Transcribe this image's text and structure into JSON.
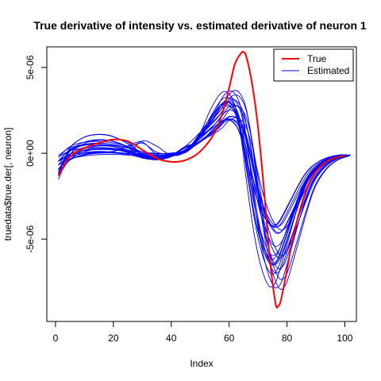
{
  "chart_data": {
    "type": "line",
    "title": "True derivative of intensity vs. estimated derivative of neuron 1",
    "xlabel": "Index",
    "ylabel": "truedata$true.der[, neuron]",
    "xlim": [
      -3,
      104
    ],
    "ylim": [
      -9.8e-06,
      6.2e-06
    ],
    "x_ticks": [
      0,
      20,
      40,
      60,
      80,
      100
    ],
    "x_tick_labels": [
      "0",
      "20",
      "40",
      "60",
      "80",
      "100"
    ],
    "y_ticks": [
      -5e-06,
      0,
      5e-06
    ],
    "y_tick_labels": [
      "-5e-06",
      "0e+00",
      "5e-06"
    ],
    "grid": false,
    "legend": {
      "position": "top-right",
      "entries": [
        {
          "label": "True",
          "color": "#ff0000"
        },
        {
          "label": "Estimated",
          "color": "#0000ff"
        }
      ]
    },
    "colors": {
      "true": "#ff0000",
      "estimated": "#0000ff"
    },
    "true_series": {
      "name": "True",
      "x": [
        1,
        5,
        10,
        15,
        20,
        25,
        30,
        35,
        40,
        45,
        50,
        55,
        58,
        60,
        62,
        64,
        65,
        66,
        68,
        70,
        72,
        74,
        76,
        77,
        78,
        80,
        82,
        85,
        88,
        92,
        96,
        100
      ],
      "y": [
        -1.3e-06,
        -2e-07,
        3e-07,
        6e-07,
        8e-07,
        7e-07,
        2e-07,
        -3e-07,
        -5e-07,
        -4e-07,
        1e-07,
        1.2e-06,
        2.5e-06,
        3.8e-06,
        5.2e-06,
        5.8e-06,
        5.9e-06,
        5.6e-06,
        4e-06,
        1.5e-06,
        -2e-06,
        -6e-06,
        -8.7e-06,
        -8.9e-06,
        -8.5e-06,
        -6.8e-06,
        -5e-06,
        -3e-06,
        -1.6e-06,
        -7e-07,
        -3e-07,
        -1.5e-07
      ]
    },
    "estimated_series": {
      "name": "Estimated",
      "base_x": [
        1,
        5,
        10,
        15,
        20,
        25,
        30,
        35,
        40,
        45,
        50,
        55,
        58,
        60,
        62,
        64,
        66,
        68,
        70,
        72,
        74,
        76,
        78,
        80,
        82,
        85,
        88,
        92,
        96,
        100
      ],
      "base_y": [
        -8e-07,
        0.0,
        3.5e-07,
        4.5e-07,
        4e-07,
        2e-07,
        -1e-07,
        -2e-07,
        -1e-07,
        2e-07,
        8e-07,
        1.6e-06,
        2.2e-06,
        2.4e-06,
        2.3e-06,
        1.8e-06,
        6e-07,
        -1.2e-06,
        -2.8e-06,
        -4e-06,
        -4.8e-06,
        -5.2e-06,
        -5e-06,
        -4.3e-06,
        -3.5e-06,
        -2.3e-06,
        -1.3e-06,
        -6e-07,
        -2.5e-07,
        -1e-07
      ],
      "curve_count": 22
    }
  }
}
